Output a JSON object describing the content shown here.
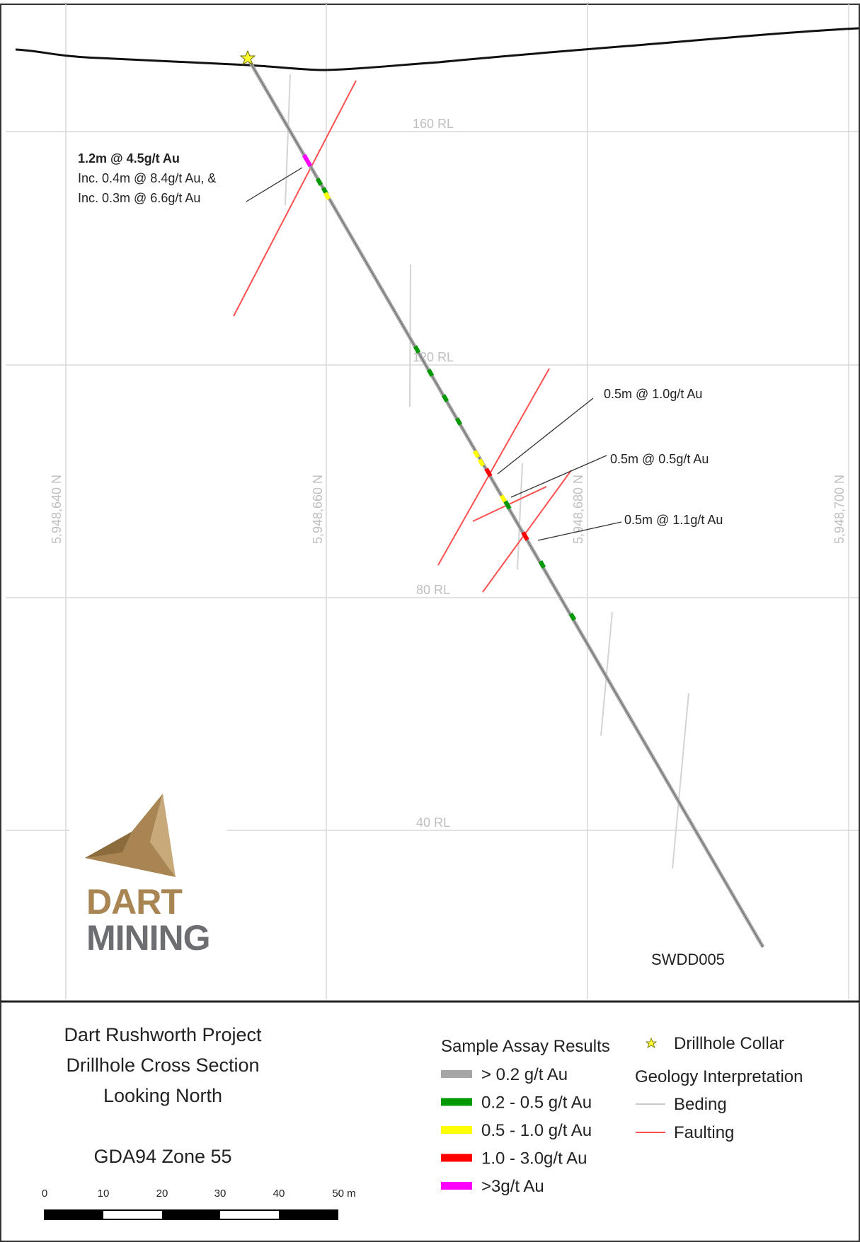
{
  "section": {
    "rl_labels": [
      "160 RL",
      "120 RL",
      "80 RL",
      "40 RL"
    ],
    "northing_labels": [
      "5,948,640 N",
      "5,948,660 N",
      "5,948,680 N",
      "5,948,700 N"
    ],
    "hole_id": "SWDD005",
    "callouts": {
      "a_title": "1.2m @ 4.5g/t Au",
      "a_line2": "Inc. 0.4m @ 8.4g/t Au, &",
      "a_line3": "Inc. 0.3m @ 6.6g/t Au",
      "b": "0.5m @ 1.0g/t Au",
      "c": "0.5m @ 0.5g/t Au",
      "d": "0.5m @ 1.1g/t Au"
    }
  },
  "logo": {
    "line1": "DART",
    "line2": "MINING",
    "gold": "#a88552",
    "grey": "#6d6e71"
  },
  "legend": {
    "title_lines": [
      "Dart Rushworth Project",
      "Drillhole Cross Section",
      "Looking North"
    ],
    "datum": "GDA94 Zone 55",
    "assay_title": "Sample Assay Results",
    "assays": [
      {
        "label": "> 0.2 g/t Au",
        "color": "#a6a6a6"
      },
      {
        "label": "0.2 - 0.5 g/t Au",
        "color": "#009900"
      },
      {
        "label": "0.5 - 1.0 g/t Au",
        "color": "#ffff00"
      },
      {
        "label": "1.0 - 3.0g/t Au",
        "color": "#ff0000"
      },
      {
        "label": ">3g/t Au",
        "color": "#ff00ff"
      }
    ],
    "collar_label": "Drillhole Collar",
    "geology_title": "Geology Interpretation",
    "geology": [
      {
        "label": "Beding",
        "color": "#cccccc"
      },
      {
        "label": "Faulting",
        "color": "#ff5050"
      }
    ]
  },
  "scale_bar": {
    "ticks": [
      "0",
      "10",
      "20",
      "30",
      "40",
      "50 m"
    ]
  }
}
